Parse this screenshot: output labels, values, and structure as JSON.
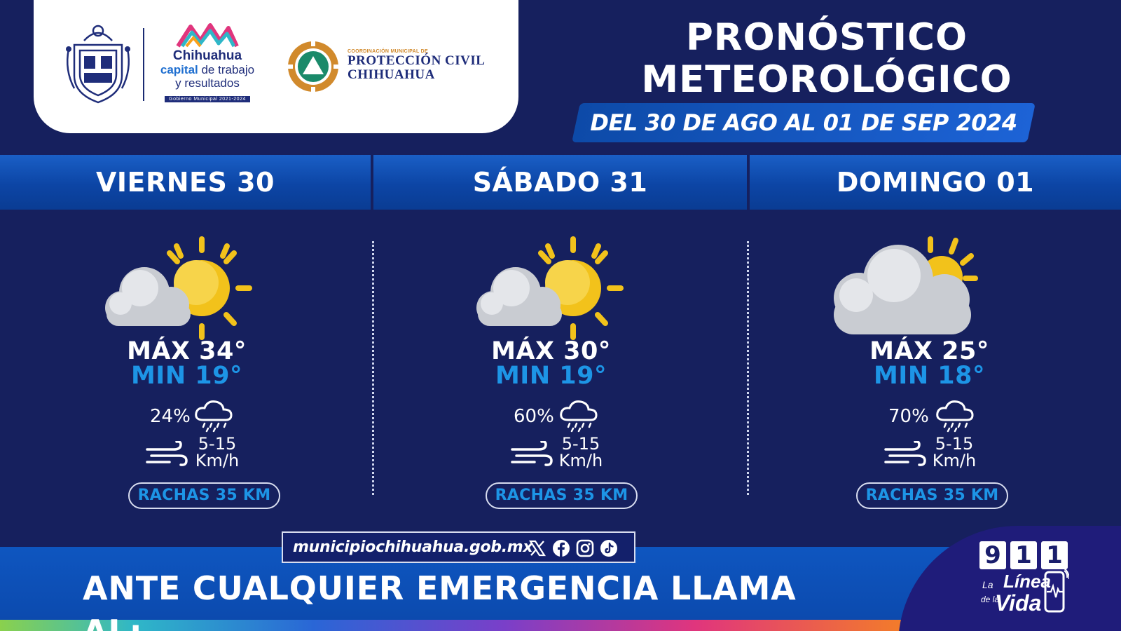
{
  "header": {
    "city_logo": {
      "line1": "Chihuahua",
      "line2_accent": "capital",
      "line2_rest": " de trabajo",
      "line3": "y resultados",
      "tagline": "Gobierno Municipal 2021-2024"
    },
    "civil_protection": {
      "small": "COORDINACIÓN MUNICIPAL DE",
      "line1": "PROTECCIÓN CIVIL",
      "line2": "CHIHUAHUA"
    },
    "title_line1": "PRONÓSTICO",
    "title_line2": "METEOROLÓGICO",
    "date_range": "DEL 30 DE AGO AL 01 DE SEP 2024"
  },
  "days": [
    {
      "label": "VIERNES 30",
      "icon": "partly-cloudy-icon",
      "max": "MÁX 34°",
      "min": "MIN 19°",
      "rain_pct": "24%",
      "wind_speed": "5-15",
      "wind_unit": "Km/h",
      "gusts": "RACHAS 35 KM"
    },
    {
      "label": "SÁBADO 31",
      "icon": "partly-cloudy-icon",
      "max": "MÁX 30°",
      "min": "MIN 19°",
      "rain_pct": "60%",
      "wind_speed": "5-15",
      "wind_unit": "Km/h",
      "gusts": "RACHAS 35 KM"
    },
    {
      "label": "DOMINGO 01",
      "icon": "mostly-cloudy-icon",
      "max": "MÁX 25°",
      "min": "MIN 18°",
      "rain_pct": "70%",
      "wind_speed": "5-15",
      "wind_unit": "Km/h",
      "gusts": "RACHAS 35 KM"
    }
  ],
  "footer": {
    "website": "municipiochihuahua.gob.mx",
    "social_icons": [
      "x-icon",
      "facebook-icon",
      "instagram-icon",
      "tiktok-icon"
    ],
    "emergency_text": "ANTE CUALQUIER EMERGENCIA LLAMA AL:",
    "emergency_digits": [
      "9",
      "1",
      "1"
    ],
    "slogan_la": "La",
    "slogan_linea": "Línea",
    "slogan_dela": "de la",
    "slogan_vida": "Vida"
  },
  "colors": {
    "background": "#16205e",
    "bar_blue": "#0c45a5",
    "min_temp_blue": "#1d95e6",
    "sun_yellow": "#f2c21b",
    "cloud_gray": "#c9ccd2"
  }
}
